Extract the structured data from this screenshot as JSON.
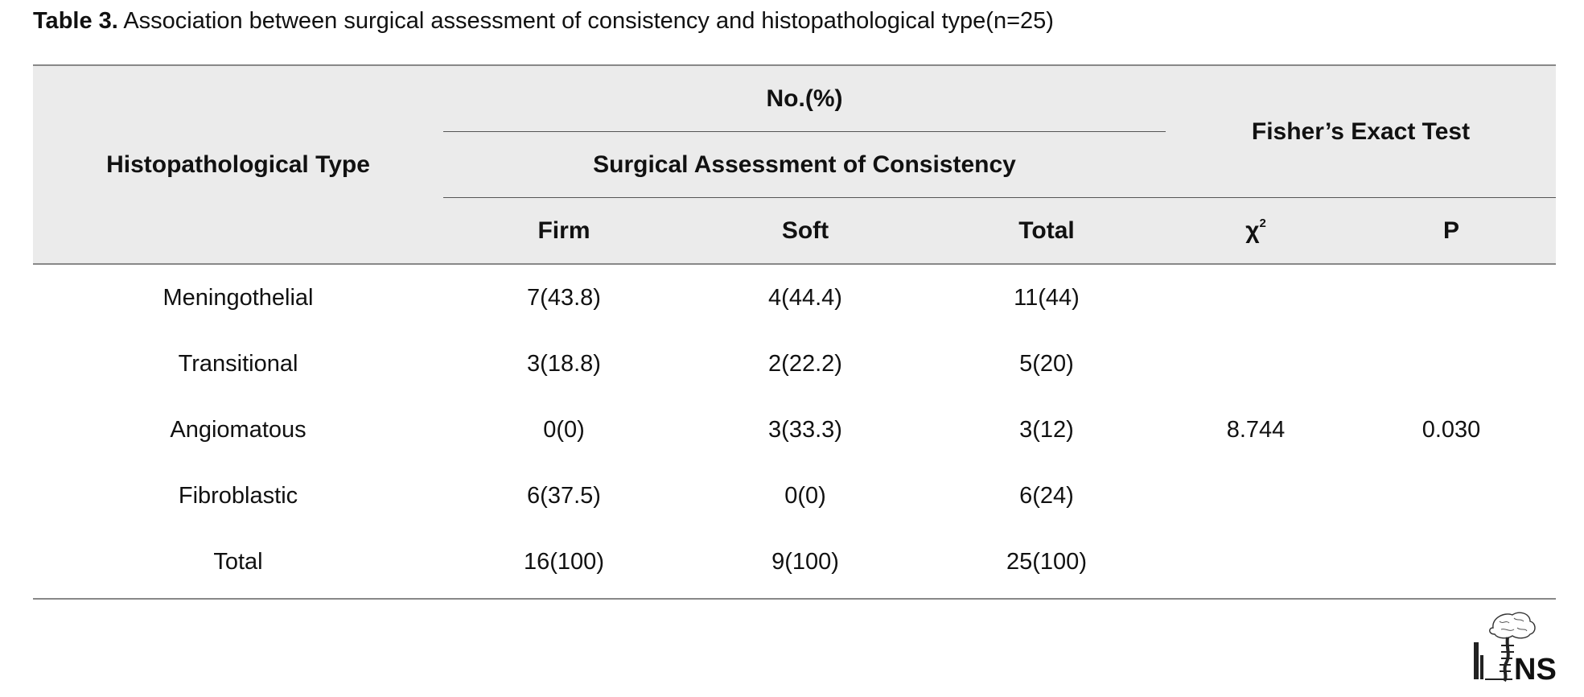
{
  "caption": {
    "label": "Table 3.",
    "text": "Association between surgical assessment of consistency and histopathological type(n=25)"
  },
  "header": {
    "row_label": "Histopathological Type",
    "group_top": "No.(%)",
    "group_sub": "Surgical Assessment of Consistency",
    "test_group": "Fisher’s Exact Test",
    "columns": [
      "Firm",
      "Soft",
      "Total"
    ],
    "chi_symbol": "χ",
    "chi_superscript": "2",
    "p_label": "P"
  },
  "rows": [
    {
      "type": "Meningothelial",
      "firm": "7(43.8)",
      "soft": "4(44.4)",
      "total": "11(44)"
    },
    {
      "type": "Transitional",
      "firm": "3(18.8)",
      "soft": "2(22.2)",
      "total": "5(20)"
    },
    {
      "type": "Angiomatous",
      "firm": "0(0)",
      "soft": "3(33.3)",
      "total": "3(12)"
    },
    {
      "type": "Fibroblastic",
      "firm": "6(37.5)",
      "soft": "0(0)",
      "total": "6(24)"
    },
    {
      "type": "Total",
      "firm": "16(100)",
      "soft": "9(100)",
      "total": "25(100)"
    }
  ],
  "statistics": {
    "chi_square": "8.744",
    "p_value": "0.030"
  },
  "logo": {
    "icon": "ins-brain-logo-icon",
    "text": "NS"
  }
}
